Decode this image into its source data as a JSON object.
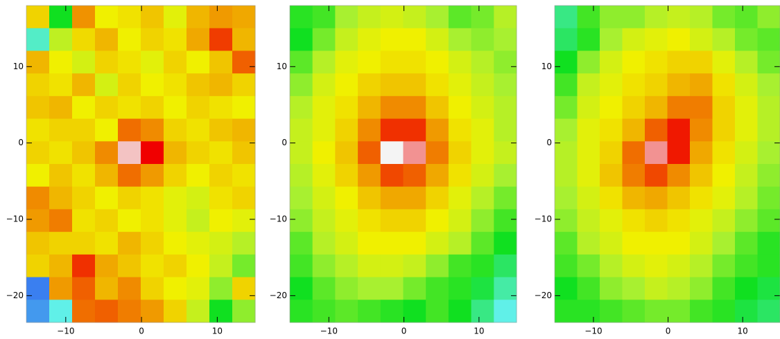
{
  "chart_data": [
    {
      "type": "heatmap",
      "xlim": [
        -15.2,
        15
      ],
      "ylim": [
        -23.5,
        18
      ],
      "xticks": [
        {
          "value": -10,
          "label": "−10"
        },
        0,
        10
      ],
      "yticks": [
        {
          "value": -20,
          "label": "−20"
        },
        {
          "value": -10,
          "label": "−10"
        },
        0,
        10
      ],
      "zlim": [
        0,
        100
      ],
      "colorscale": [
        [
          0,
          "#1030d0"
        ],
        [
          15,
          "#3a7ff0"
        ],
        [
          28,
          "#60f0e8"
        ],
        [
          40,
          "#10e020"
        ],
        [
          52,
          "#a8f030"
        ],
        [
          62,
          "#f0f000"
        ],
        [
          72,
          "#f0a800"
        ],
        [
          82,
          "#f06000"
        ],
        [
          90,
          "#f00000"
        ],
        [
          100,
          "#f4f4f4"
        ]
      ],
      "values": [
        [
          66,
          40,
          75,
          62,
          64,
          68,
          60,
          70,
          74,
          72
        ],
        [
          30,
          55,
          65,
          70,
          62,
          66,
          64,
          72,
          85,
          70
        ],
        [
          70,
          62,
          58,
          66,
          64,
          60,
          66,
          62,
          68,
          82
        ],
        [
          66,
          64,
          70,
          58,
          66,
          62,
          64,
          68,
          70,
          66
        ],
        [
          68,
          70,
          62,
          66,
          64,
          66,
          62,
          66,
          64,
          62
        ],
        [
          64,
          66,
          66,
          62,
          80,
          76,
          66,
          64,
          68,
          70
        ],
        [
          66,
          64,
          68,
          76,
          98,
          90,
          70,
          66,
          64,
          68
        ],
        [
          62,
          68,
          64,
          70,
          80,
          74,
          66,
          62,
          66,
          64
        ],
        [
          76,
          70,
          66,
          62,
          66,
          64,
          60,
          58,
          64,
          66
        ],
        [
          74,
          78,
          64,
          66,
          62,
          64,
          60,
          56,
          62,
          60
        ],
        [
          68,
          66,
          66,
          64,
          70,
          66,
          62,
          60,
          58,
          54
        ],
        [
          66,
          70,
          86,
          72,
          68,
          64,
          66,
          62,
          56,
          48
        ],
        [
          15,
          74,
          82,
          70,
          76,
          66,
          62,
          60,
          50,
          66
        ],
        [
          18,
          28,
          80,
          82,
          78,
          74,
          66,
          56,
          40,
          50
        ]
      ]
    },
    {
      "type": "heatmap",
      "xlim": [
        -15.2,
        15
      ],
      "ylim": [
        -23.5,
        18
      ],
      "xticks": [
        {
          "value": -10,
          "label": "−10"
        },
        0,
        10
      ],
      "yticks": [
        {
          "value": -20,
          "label": "−20"
        },
        {
          "value": -10,
          "label": "−10"
        },
        0,
        10
      ],
      "zlim": [
        0,
        100
      ],
      "colorscale": [
        [
          0,
          "#1030d0"
        ],
        [
          15,
          "#3a7ff0"
        ],
        [
          28,
          "#60f0e8"
        ],
        [
          40,
          "#10e020"
        ],
        [
          52,
          "#a8f030"
        ],
        [
          62,
          "#f0f000"
        ],
        [
          72,
          "#f0a800"
        ],
        [
          82,
          "#f06000"
        ],
        [
          90,
          "#f00000"
        ],
        [
          100,
          "#f4f4f4"
        ]
      ],
      "values": [
        [
          42,
          44,
          52,
          56,
          58,
          56,
          52,
          46,
          48,
          54
        ],
        [
          40,
          48,
          56,
          60,
          62,
          62,
          58,
          52,
          50,
          52
        ],
        [
          46,
          54,
          60,
          62,
          64,
          64,
          62,
          58,
          54,
          50
        ],
        [
          50,
          58,
          62,
          66,
          68,
          68,
          64,
          60,
          56,
          52
        ],
        [
          54,
          60,
          64,
          70,
          76,
          76,
          68,
          62,
          58,
          54
        ],
        [
          56,
          60,
          66,
          76,
          86,
          86,
          74,
          64,
          60,
          54
        ],
        [
          56,
          62,
          68,
          82,
          100,
          96,
          78,
          66,
          60,
          56
        ],
        [
          54,
          60,
          66,
          74,
          84,
          82,
          72,
          64,
          58,
          52
        ],
        [
          52,
          58,
          62,
          68,
          72,
          72,
          66,
          60,
          54,
          48
        ],
        [
          50,
          56,
          60,
          64,
          66,
          66,
          62,
          58,
          50,
          44
        ],
        [
          46,
          54,
          58,
          62,
          62,
          62,
          58,
          54,
          46,
          40
        ],
        [
          44,
          50,
          54,
          58,
          58,
          56,
          50,
          44,
          42,
          36
        ],
        [
          40,
          46,
          50,
          52,
          52,
          48,
          44,
          42,
          38,
          32
        ],
        [
          42,
          44,
          46,
          44,
          42,
          40,
          44,
          40,
          34,
          28
        ]
      ]
    },
    {
      "type": "heatmap",
      "xlim": [
        -15.2,
        15
      ],
      "ylim": [
        -23.5,
        18
      ],
      "xticks": [
        {
          "value": -10,
          "label": "−10"
        },
        0,
        10
      ],
      "yticks": [
        {
          "value": -20,
          "label": "−20"
        },
        {
          "value": -10,
          "label": "−10"
        },
        0,
        10
      ],
      "zlim": [
        0,
        100
      ],
      "colorscale": [
        [
          0,
          "#1030d0"
        ],
        [
          15,
          "#3a7ff0"
        ],
        [
          28,
          "#60f0e8"
        ],
        [
          40,
          "#10e020"
        ],
        [
          52,
          "#a8f030"
        ],
        [
          62,
          "#f0f000"
        ],
        [
          72,
          "#f0a800"
        ],
        [
          82,
          "#f06000"
        ],
        [
          90,
          "#f00000"
        ],
        [
          100,
          "#f4f4f4"
        ]
      ],
      "values": [
        [
          34,
          44,
          50,
          50,
          54,
          56,
          54,
          48,
          46,
          50
        ],
        [
          36,
          42,
          52,
          58,
          60,
          62,
          58,
          54,
          48,
          46
        ],
        [
          40,
          50,
          58,
          62,
          64,
          66,
          66,
          60,
          54,
          48
        ],
        [
          44,
          56,
          60,
          64,
          66,
          70,
          72,
          64,
          58,
          52
        ],
        [
          48,
          58,
          62,
          66,
          70,
          78,
          78,
          66,
          60,
          54
        ],
        [
          52,
          60,
          64,
          70,
          82,
          88,
          76,
          66,
          60,
          54
        ],
        [
          54,
          60,
          66,
          80,
          96,
          88,
          72,
          64,
          58,
          52
        ],
        [
          54,
          60,
          68,
          78,
          84,
          76,
          68,
          62,
          56,
          50
        ],
        [
          52,
          58,
          64,
          70,
          72,
          68,
          64,
          60,
          54,
          48
        ],
        [
          50,
          56,
          60,
          64,
          66,
          64,
          60,
          56,
          50,
          46
        ],
        [
          46,
          54,
          58,
          62,
          62,
          62,
          58,
          52,
          46,
          42
        ],
        [
          44,
          48,
          54,
          58,
          60,
          58,
          54,
          48,
          44,
          42
        ],
        [
          40,
          44,
          50,
          52,
          56,
          54,
          50,
          44,
          40,
          38
        ],
        [
          42,
          42,
          44,
          46,
          48,
          48,
          44,
          42,
          38,
          36
        ]
      ]
    }
  ]
}
